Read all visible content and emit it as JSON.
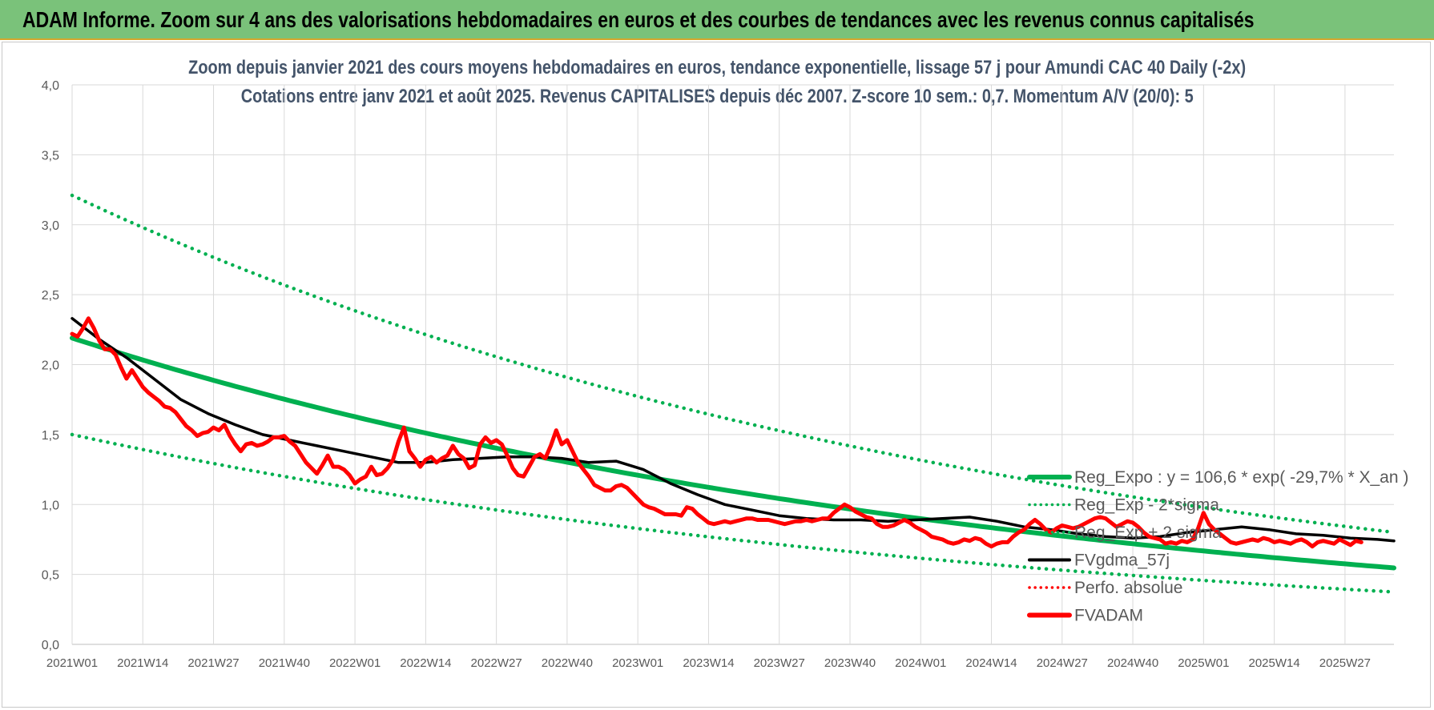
{
  "header": {
    "banner_title": "ADAM Informe. Zoom sur 4 ans des valorisations hebdomadaires en euros et des courbes de tendances avec les revenus connus capitalisés"
  },
  "chart_data": {
    "type": "line",
    "title": "Zoom depuis janvier 2021 des cours moyens hebdomadaires en euros, tendance exponentielle, lissage 57 j pour Amundi CAC 40 Daily (-2x)",
    "subtitle": "Cotations entre janv 2021 et août 2025.  Revenus CAPITALISES depuis déc 2007.  Z-score 10 sem.: 0,7.  Momentum A/V (20/0): 5",
    "xlabel": "",
    "ylabel": "",
    "ylim": [
      0,
      4
    ],
    "yticks": [
      "0,0",
      "0,5",
      "1,0",
      "1,5",
      "2,0",
      "2,5",
      "3,0",
      "3,5",
      "4,0"
    ],
    "xticks": [
      "2021W01",
      "2021W14",
      "2021W27",
      "2021W40",
      "2022W01",
      "2022W14",
      "2022W27",
      "2022W40",
      "2023W01",
      "2023W14",
      "2023W27",
      "2023W40",
      "2024W01",
      "2024W14",
      "2024W27",
      "2024W40",
      "2025W01",
      "2025W14",
      "2025W27"
    ],
    "x_range_weeks": [
      0,
      243
    ],
    "grid": true,
    "legend_position": "right",
    "colors": {
      "green": "#00b050",
      "black": "#000000",
      "red": "#ff0000",
      "title_text": "#44546a",
      "banner": "#7ac27a"
    },
    "series": [
      {
        "name": "Reg_Expo : y = 106,6 * exp( -29,7% *  X_an )",
        "style": "solid",
        "color": "#00b050",
        "x": [
          0,
          243
        ],
        "formula": "2.19 * exp(-0.297 * x / 52)"
      },
      {
        "name": "Reg_Exp - 2*sigma",
        "style": "dotted",
        "color": "#00b050",
        "x": [
          0,
          243
        ],
        "formula": "1.50 * exp(-0.297 * x / 52)"
      },
      {
        "name": "Reg_Exp + 2 sigma",
        "style": "dotted",
        "color": "#00b050",
        "x": [
          0,
          243
        ],
        "formula": "3.21 * exp(-0.297 * x / 52)"
      },
      {
        "name": "FVgdma_57j",
        "style": "solid",
        "color": "#000000",
        "points": [
          [
            0,
            2.33
          ],
          [
            5,
            2.18
          ],
          [
            10,
            2.05
          ],
          [
            15,
            1.9
          ],
          [
            20,
            1.75
          ],
          [
            25,
            1.65
          ],
          [
            30,
            1.57
          ],
          [
            35,
            1.5
          ],
          [
            40,
            1.46
          ],
          [
            45,
            1.42
          ],
          [
            50,
            1.38
          ],
          [
            55,
            1.34
          ],
          [
            60,
            1.3
          ],
          [
            65,
            1.3
          ],
          [
            70,
            1.32
          ],
          [
            75,
            1.33
          ],
          [
            80,
            1.34
          ],
          [
            85,
            1.34
          ],
          [
            90,
            1.33
          ],
          [
            95,
            1.3
          ],
          [
            100,
            1.31
          ],
          [
            105,
            1.25
          ],
          [
            110,
            1.15
          ],
          [
            115,
            1.07
          ],
          [
            120,
            1.0
          ],
          [
            125,
            0.96
          ],
          [
            130,
            0.92
          ],
          [
            135,
            0.9
          ],
          [
            140,
            0.89
          ],
          [
            145,
            0.89
          ],
          [
            150,
            0.88
          ],
          [
            155,
            0.89
          ],
          [
            160,
            0.9
          ],
          [
            165,
            0.91
          ],
          [
            170,
            0.88
          ],
          [
            175,
            0.84
          ],
          [
            180,
            0.82
          ],
          [
            185,
            0.79
          ],
          [
            190,
            0.77
          ],
          [
            195,
            0.76
          ],
          [
            200,
            0.77
          ],
          [
            205,
            0.8
          ],
          [
            210,
            0.82
          ],
          [
            215,
            0.84
          ],
          [
            220,
            0.82
          ],
          [
            225,
            0.79
          ],
          [
            230,
            0.78
          ],
          [
            235,
            0.76
          ],
          [
            240,
            0.75
          ],
          [
            243,
            0.74
          ]
        ]
      },
      {
        "name": "Perfo. absolue",
        "style": "dotted",
        "color": "#ff0000",
        "points": []
      },
      {
        "name": "FVADAM",
        "style": "solid",
        "color": "#ff0000",
        "points": [
          [
            0,
            2.22
          ],
          [
            1,
            2.2
          ],
          [
            2,
            2.26
          ],
          [
            3,
            2.33
          ],
          [
            4,
            2.26
          ],
          [
            5,
            2.17
          ],
          [
            6,
            2.11
          ],
          [
            7,
            2.11
          ],
          [
            8,
            2.07
          ],
          [
            9,
            1.98
          ],
          [
            10,
            1.9
          ],
          [
            11,
            1.96
          ],
          [
            12,
            1.9
          ],
          [
            13,
            1.84
          ],
          [
            14,
            1.8
          ],
          [
            15,
            1.77
          ],
          [
            16,
            1.74
          ],
          [
            17,
            1.7
          ],
          [
            18,
            1.69
          ],
          [
            19,
            1.66
          ],
          [
            20,
            1.61
          ],
          [
            21,
            1.56
          ],
          [
            22,
            1.53
          ],
          [
            23,
            1.49
          ],
          [
            24,
            1.51
          ],
          [
            25,
            1.52
          ],
          [
            26,
            1.55
          ],
          [
            27,
            1.53
          ],
          [
            28,
            1.57
          ],
          [
            29,
            1.49
          ],
          [
            30,
            1.43
          ],
          [
            31,
            1.38
          ],
          [
            32,
            1.43
          ],
          [
            33,
            1.44
          ],
          [
            34,
            1.42
          ],
          [
            35,
            1.43
          ],
          [
            36,
            1.45
          ],
          [
            37,
            1.48
          ],
          [
            38,
            1.48
          ],
          [
            39,
            1.49
          ],
          [
            40,
            1.45
          ],
          [
            41,
            1.42
          ],
          [
            42,
            1.36
          ],
          [
            43,
            1.3
          ],
          [
            44,
            1.26
          ],
          [
            45,
            1.22
          ],
          [
            46,
            1.28
          ],
          [
            47,
            1.35
          ],
          [
            48,
            1.27
          ],
          [
            49,
            1.27
          ],
          [
            50,
            1.25
          ],
          [
            51,
            1.21
          ],
          [
            52,
            1.15
          ],
          [
            53,
            1.18
          ],
          [
            54,
            1.2
          ],
          [
            55,
            1.27
          ],
          [
            56,
            1.21
          ],
          [
            57,
            1.22
          ],
          [
            58,
            1.26
          ],
          [
            59,
            1.32
          ],
          [
            60,
            1.45
          ],
          [
            61,
            1.55
          ],
          [
            62,
            1.38
          ],
          [
            63,
            1.33
          ],
          [
            64,
            1.27
          ],
          [
            65,
            1.32
          ],
          [
            66,
            1.34
          ],
          [
            67,
            1.3
          ],
          [
            68,
            1.33
          ],
          [
            69,
            1.35
          ],
          [
            70,
            1.42
          ],
          [
            71,
            1.36
          ],
          [
            72,
            1.33
          ],
          [
            73,
            1.26
          ],
          [
            74,
            1.28
          ],
          [
            75,
            1.43
          ],
          [
            76,
            1.48
          ],
          [
            77,
            1.44
          ],
          [
            78,
            1.46
          ],
          [
            79,
            1.43
          ],
          [
            80,
            1.35
          ],
          [
            81,
            1.26
          ],
          [
            82,
            1.21
          ],
          [
            83,
            1.2
          ],
          [
            84,
            1.27
          ],
          [
            85,
            1.34
          ],
          [
            86,
            1.36
          ],
          [
            87,
            1.33
          ],
          [
            88,
            1.42
          ],
          [
            89,
            1.53
          ],
          [
            90,
            1.43
          ],
          [
            91,
            1.46
          ],
          [
            92,
            1.38
          ],
          [
            93,
            1.3
          ],
          [
            94,
            1.25
          ],
          [
            95,
            1.2
          ],
          [
            96,
            1.14
          ],
          [
            97,
            1.12
          ],
          [
            98,
            1.1
          ],
          [
            99,
            1.1
          ],
          [
            100,
            1.13
          ],
          [
            101,
            1.14
          ],
          [
            102,
            1.12
          ],
          [
            103,
            1.08
          ],
          [
            104,
            1.04
          ],
          [
            105,
            1.0
          ],
          [
            106,
            0.98
          ],
          [
            107,
            0.97
          ],
          [
            108,
            0.95
          ],
          [
            109,
            0.93
          ],
          [
            110,
            0.93
          ],
          [
            111,
            0.93
          ],
          [
            112,
            0.92
          ],
          [
            113,
            0.98
          ],
          [
            114,
            0.97
          ],
          [
            115,
            0.93
          ],
          [
            116,
            0.9
          ],
          [
            117,
            0.87
          ],
          [
            118,
            0.86
          ],
          [
            119,
            0.87
          ],
          [
            120,
            0.88
          ],
          [
            121,
            0.87
          ],
          [
            122,
            0.88
          ],
          [
            123,
            0.89
          ],
          [
            124,
            0.9
          ],
          [
            125,
            0.9
          ],
          [
            126,
            0.89
          ],
          [
            127,
            0.89
          ],
          [
            128,
            0.89
          ],
          [
            129,
            0.88
          ],
          [
            130,
            0.87
          ],
          [
            131,
            0.86
          ],
          [
            132,
            0.87
          ],
          [
            133,
            0.88
          ],
          [
            134,
            0.88
          ],
          [
            135,
            0.89
          ],
          [
            136,
            0.88
          ],
          [
            137,
            0.89
          ],
          [
            138,
            0.9
          ],
          [
            139,
            0.9
          ],
          [
            140,
            0.94
          ],
          [
            141,
            0.97
          ],
          [
            142,
            1.0
          ],
          [
            143,
            0.98
          ],
          [
            144,
            0.95
          ],
          [
            145,
            0.93
          ],
          [
            146,
            0.91
          ],
          [
            147,
            0.9
          ],
          [
            148,
            0.86
          ],
          [
            149,
            0.84
          ],
          [
            150,
            0.84
          ],
          [
            151,
            0.85
          ],
          [
            152,
            0.87
          ],
          [
            153,
            0.89
          ],
          [
            154,
            0.87
          ],
          [
            155,
            0.84
          ],
          [
            156,
            0.82
          ],
          [
            157,
            0.8
          ],
          [
            158,
            0.77
          ],
          [
            159,
            0.76
          ],
          [
            160,
            0.75
          ],
          [
            161,
            0.73
          ],
          [
            162,
            0.72
          ],
          [
            163,
            0.73
          ],
          [
            164,
            0.75
          ],
          [
            165,
            0.74
          ],
          [
            166,
            0.76
          ],
          [
            167,
            0.75
          ],
          [
            168,
            0.72
          ],
          [
            169,
            0.7
          ],
          [
            170,
            0.72
          ],
          [
            171,
            0.73
          ],
          [
            172,
            0.73
          ],
          [
            173,
            0.77
          ],
          [
            174,
            0.8
          ],
          [
            175,
            0.82
          ],
          [
            176,
            0.86
          ],
          [
            177,
            0.89
          ],
          [
            178,
            0.86
          ],
          [
            179,
            0.82
          ],
          [
            180,
            0.8
          ],
          [
            181,
            0.83
          ],
          [
            182,
            0.85
          ],
          [
            183,
            0.84
          ],
          [
            184,
            0.83
          ],
          [
            185,
            0.84
          ],
          [
            186,
            0.86
          ],
          [
            187,
            0.88
          ],
          [
            188,
            0.9
          ],
          [
            189,
            0.91
          ],
          [
            190,
            0.9
          ],
          [
            191,
            0.87
          ],
          [
            192,
            0.84
          ],
          [
            193,
            0.86
          ],
          [
            194,
            0.88
          ],
          [
            195,
            0.87
          ],
          [
            196,
            0.84
          ],
          [
            197,
            0.8
          ],
          [
            198,
            0.77
          ],
          [
            199,
            0.76
          ],
          [
            200,
            0.75
          ],
          [
            201,
            0.72
          ],
          [
            202,
            0.73
          ],
          [
            203,
            0.72
          ],
          [
            204,
            0.74
          ],
          [
            205,
            0.73
          ],
          [
            206,
            0.75
          ],
          [
            207,
            0.83
          ],
          [
            208,
            0.94
          ],
          [
            209,
            0.86
          ],
          [
            210,
            0.82
          ],
          [
            211,
            0.79
          ],
          [
            212,
            0.76
          ],
          [
            213,
            0.73
          ],
          [
            214,
            0.72
          ],
          [
            215,
            0.73
          ],
          [
            216,
            0.74
          ],
          [
            217,
            0.75
          ],
          [
            218,
            0.74
          ],
          [
            219,
            0.76
          ],
          [
            220,
            0.75
          ],
          [
            221,
            0.73
          ],
          [
            222,
            0.74
          ],
          [
            223,
            0.73
          ],
          [
            224,
            0.72
          ],
          [
            225,
            0.74
          ],
          [
            226,
            0.75
          ],
          [
            227,
            0.73
          ],
          [
            228,
            0.7
          ],
          [
            229,
            0.73
          ],
          [
            230,
            0.74
          ],
          [
            231,
            0.73
          ],
          [
            232,
            0.72
          ],
          [
            233,
            0.75
          ],
          [
            234,
            0.73
          ],
          [
            235,
            0.71
          ],
          [
            236,
            0.74
          ],
          [
            237,
            0.73
          ]
        ]
      }
    ]
  }
}
